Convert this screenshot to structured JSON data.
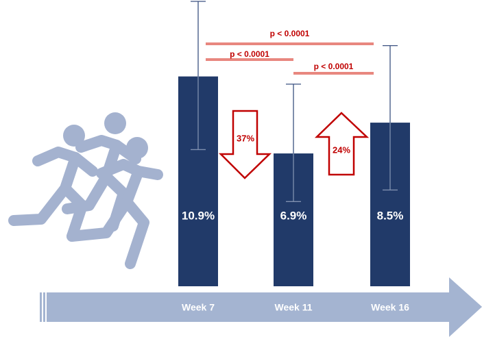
{
  "chart_data": {
    "type": "bar",
    "categories": [
      "Week 7",
      "Week 11",
      "Week 16"
    ],
    "values": [
      10.9,
      6.9,
      8.5
    ],
    "value_labels": [
      "10.9%",
      "6.9%",
      "8.5%"
    ],
    "errors_upper": [
      3.9,
      3.6,
      4.0
    ],
    "errors_lower": [
      3.8,
      2.5,
      3.5
    ],
    "color": "#213a69",
    "ylim": [
      0,
      14.8
    ],
    "comparisons": [
      "p < 0.0001",
      "p < 0.0001",
      "p < 0.0001"
    ],
    "changes": [
      "37%",
      "24%"
    ]
  }
}
